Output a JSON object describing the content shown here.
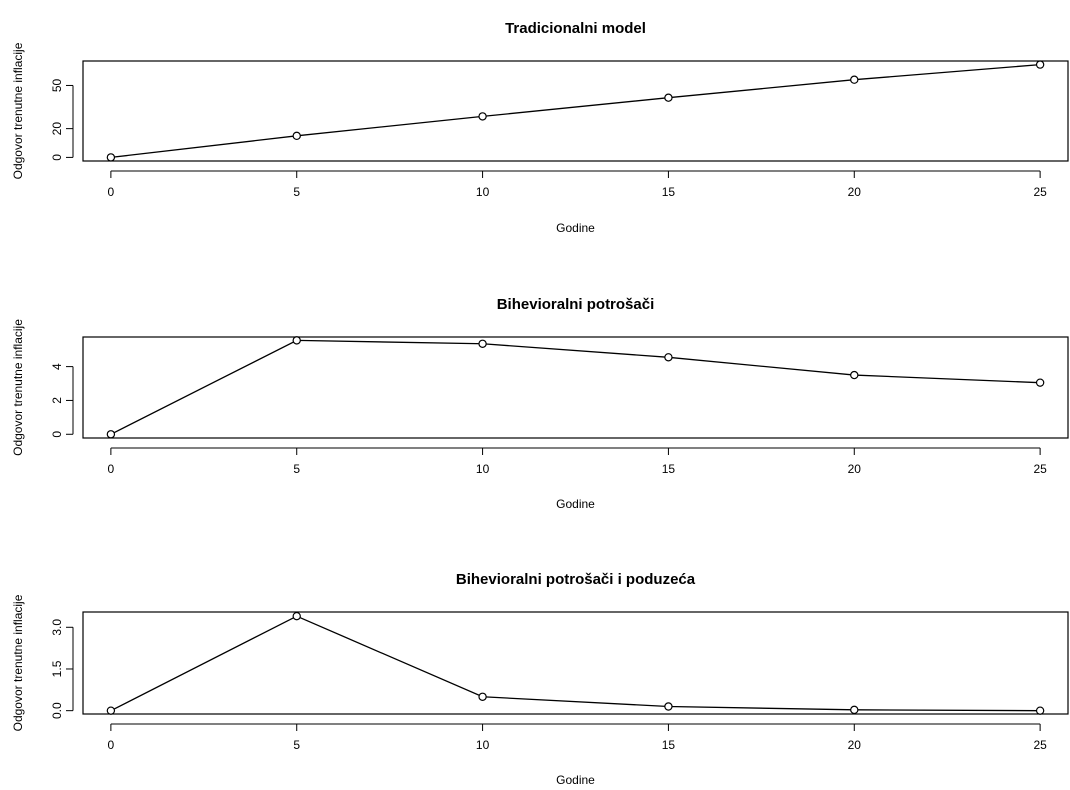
{
  "chart_data": [
    {
      "type": "line",
      "title": "Tradicionalni model",
      "xlabel": "Godine",
      "ylabel": "Odgovor trenutne inflacije",
      "x": [
        0,
        5,
        10,
        15,
        20,
        25
      ],
      "values": [
        0,
        15,
        28.5,
        41.5,
        54,
        64.5
      ],
      "xlim": [
        -0.75,
        25.75
      ],
      "ylim": [
        -2.5,
        67
      ],
      "xticks": [
        "0",
        "5",
        "10",
        "15",
        "20",
        "25"
      ],
      "yticks": [
        "0",
        "20",
        "50"
      ],
      "ytick_values": [
        0,
        20,
        50
      ]
    },
    {
      "type": "line",
      "title": "Bihevioralni potrošači",
      "xlabel": "Godine",
      "ylabel": "Odgovor trenutne inflacije",
      "x": [
        0,
        5,
        10,
        15,
        20,
        25
      ],
      "values": [
        0,
        5.55,
        5.35,
        4.55,
        3.5,
        3.05
      ],
      "xlim": [
        -0.75,
        25.75
      ],
      "ylim": [
        -0.22,
        5.75
      ],
      "xticks": [
        "0",
        "5",
        "10",
        "15",
        "20",
        "25"
      ],
      "yticks": [
        "0",
        "2",
        "4"
      ],
      "ytick_values": [
        0,
        2,
        4
      ]
    },
    {
      "type": "line",
      "title": "Bihevioralni potrošači i poduzeća",
      "xlabel": "Godine",
      "ylabel": "Odgovor trenutne inflacije",
      "x": [
        0,
        5,
        10,
        15,
        20,
        25
      ],
      "values": [
        0,
        3.4,
        0.5,
        0.15,
        0.03,
        0.0
      ],
      "xlim": [
        -0.75,
        25.75
      ],
      "ylim": [
        -0.12,
        3.55
      ],
      "xticks": [
        "0",
        "5",
        "10",
        "15",
        "20",
        "25"
      ],
      "yticks": [
        "0.0",
        "1.5",
        "3.0"
      ],
      "ytick_values": [
        0,
        1.5,
        3.0
      ]
    }
  ]
}
